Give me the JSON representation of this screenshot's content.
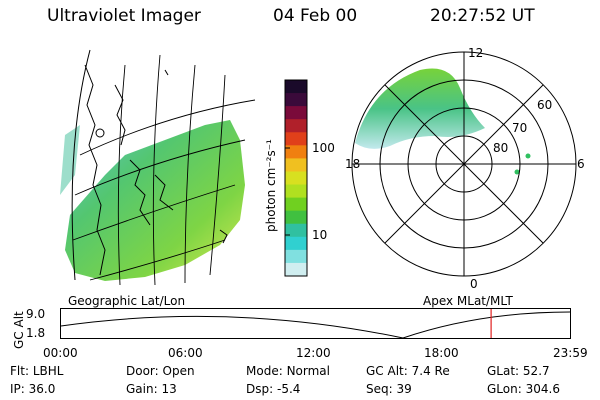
{
  "header": {
    "title": "Ultraviolet Imager",
    "date": "04 Feb 00",
    "time": "20:27:52 UT"
  },
  "colorbar": {
    "unit_label": "photon cm⁻²s⁻¹",
    "tick_100": "100",
    "tick_10": "10",
    "colors_top_to_bottom": [
      "#1a0a2a",
      "#3a0a3a",
      "#7a0a3a",
      "#b0202a",
      "#e0401a",
      "#f08010",
      "#f0c020",
      "#d8e020",
      "#b0e020",
      "#70d020",
      "#40c040",
      "#30c0a0",
      "#30d0d0",
      "#80e0e0",
      "#d0eef0"
    ]
  },
  "left_map": {
    "label": "Geographic Lat/Lon"
  },
  "right_polar": {
    "label": "Apex MLat/MLT",
    "mlt_labels": {
      "top": "12",
      "right": "6",
      "bottom": "0",
      "left": "18"
    },
    "lat_labels": [
      "60",
      "70",
      "80"
    ]
  },
  "altitude_plot": {
    "ylabel": "GC Alt",
    "ytick_top": "9.0",
    "ytick_bottom": "1.8",
    "xticks": [
      "00:00",
      "06:00",
      "12:00",
      "18:00",
      "23:59"
    ],
    "current_time_fraction": 0.845,
    "marker_color": "#e02020"
  },
  "info": {
    "row1": [
      {
        "label": "Flt:",
        "value": "LBHL"
      },
      {
        "label": "Door:",
        "value": "Open"
      },
      {
        "label": "Mode:",
        "value": "Normal"
      },
      {
        "label": "GC Alt:",
        "value": "7.4 Re"
      },
      {
        "label": "GLat:",
        "value": "52.7"
      }
    ],
    "row2": [
      {
        "label": "IP:",
        "value": "36.0"
      },
      {
        "label": "Gain:",
        "value": "13"
      },
      {
        "label": "Dsp:",
        "value": "-5.4"
      },
      {
        "label": "Seq:",
        "value": "39"
      },
      {
        "label": "GLon:",
        "value": "304.6"
      }
    ]
  }
}
